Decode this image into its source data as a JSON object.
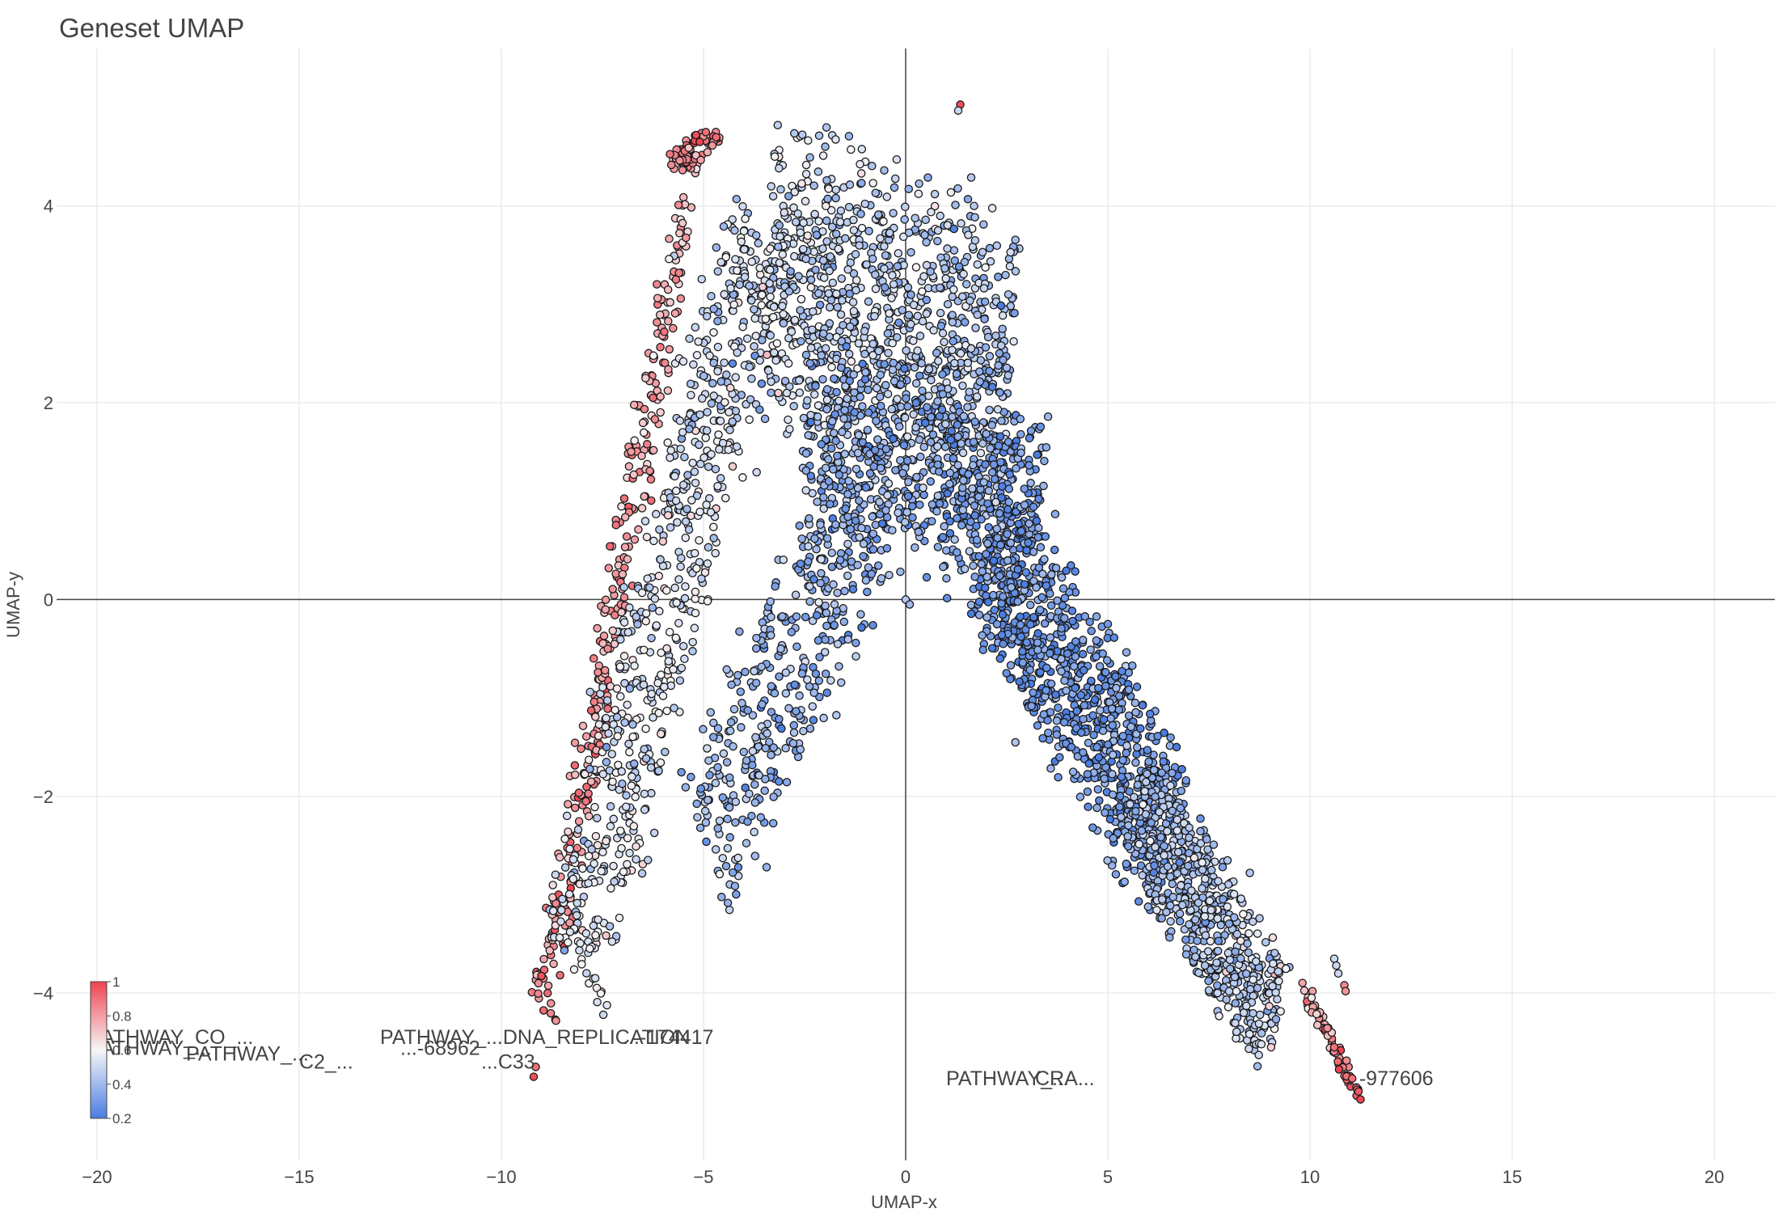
{
  "chart_data": {
    "type": "scatter",
    "title": "Geneset UMAP",
    "xlabel": "UMAP-x",
    "ylabel": "UMAP-y",
    "xlim": [
      -21,
      21.5
    ],
    "ylim": [
      -5.7,
      5.6
    ],
    "x_ticks": [
      -20,
      -15,
      -10,
      -5,
      0,
      5,
      10,
      15,
      20
    ],
    "x_tick_labels": [
      "−20",
      "−15",
      "−10",
      "−5",
      "0",
      "5",
      "10",
      "15",
      "20"
    ],
    "y_ticks": [
      -4,
      -2,
      0,
      2,
      4
    ],
    "y_tick_labels": [
      "−4",
      "−2",
      "0",
      "2",
      "4"
    ],
    "grid": true,
    "zero_lines": true,
    "colorbar": {
      "placement": "bottom-left",
      "range": [
        0.2,
        1
      ],
      "ticks": [
        1,
        0.8,
        0.6,
        0.4,
        0.2
      ],
      "tick_labels": [
        "1",
        "0.8",
        "0.6",
        "0.4",
        "0.2"
      ],
      "colors": {
        "high": "#ef4451",
        "mid": "#f6f6f6",
        "low": "#4a7de2"
      }
    },
    "marker": {
      "edge_color": "#1a1a1a"
    },
    "point_labels": [
      {
        "text": "PATHWAY_CO_...",
        "x": -20.2,
        "y": -4.45
      },
      {
        "text": "PATHWAY_...DNA_REPLICATION",
        "x": -13.0,
        "y": -4.45
      },
      {
        "text": "...-174417",
        "x": -7.0,
        "y": -4.45
      },
      {
        "text": "PATHWAY_...",
        "x": -20.2,
        "y": -4.56
      },
      {
        "text": "...-68962",
        "x": -12.5,
        "y": -4.56
      },
      {
        "text": "PATHWAY_...",
        "x": -17.8,
        "y": -4.62
      },
      {
        "text": "C2_...",
        "x": -15.0,
        "y": -4.7
      },
      {
        "text": "...C33",
        "x": -10.5,
        "y": -4.7
      },
      {
        "text": "PATHWAY_...",
        "x": 1.0,
        "y": -4.87
      },
      {
        "text": "CRA...",
        "x": 3.2,
        "y": -4.87
      },
      {
        "text": "...-977606",
        "x": 10.8,
        "y": -4.87
      }
    ],
    "regions": [
      {
        "name": "left-arm-outer",
        "count": 320,
        "x0": -5.2,
        "y0": 4.6,
        "x1": -9.0,
        "y1": -4.2,
        "width": 0.55,
        "v0": 0.75,
        "v1": 0.85
      },
      {
        "name": "left-arm-inner",
        "count": 650,
        "x0": -3.6,
        "y0": 3.8,
        "x1": -8.2,
        "y1": -3.8,
        "width": 1.5,
        "v0": 0.5,
        "v1": 0.55
      },
      {
        "name": "inner-left-blue",
        "count": 380,
        "x0": -1.0,
        "y0": 0.8,
        "x1": -5.0,
        "y1": -2.5,
        "width": 1.6,
        "v0": 0.35,
        "v1": 0.4
      },
      {
        "name": "top-blob",
        "count": 1000,
        "x0": -3.5,
        "y0": 3.4,
        "x1": 2.6,
        "y1": 2.2,
        "width": 2.6,
        "v0": 0.5,
        "v1": 0.42
      },
      {
        "name": "center-blob",
        "count": 650,
        "x0": -2.5,
        "y0": 1.8,
        "x1": 3.4,
        "y1": 0.8,
        "width": 1.8,
        "v0": 0.38,
        "v1": 0.3
      },
      {
        "name": "right-arm-upper",
        "count": 820,
        "x0": 2.0,
        "y0": 0.6,
        "x1": 6.6,
        "y1": -2.5,
        "width": 1.5,
        "v0": 0.28,
        "v1": 0.3
      },
      {
        "name": "right-arm-lower",
        "count": 650,
        "x0": 5.6,
        "y0": -2.0,
        "x1": 9.2,
        "y1": -4.3,
        "width": 1.1,
        "v0": 0.38,
        "v1": 0.5
      },
      {
        "name": "right-tail",
        "count": 60,
        "x0": 9.8,
        "y0": -3.9,
        "x1": 11.2,
        "y1": -5.05,
        "width": 0.15,
        "v0": 0.7,
        "v1": 0.95
      },
      {
        "name": "left-top-hook",
        "count": 70,
        "x0": -5.8,
        "y0": 4.4,
        "x1": -4.6,
        "y1": 4.75,
        "width": 0.22,
        "v0": 0.82,
        "v1": 0.88
      }
    ],
    "points": [
      {
        "x": 1.35,
        "y": 5.03,
        "v": 0.98
      },
      {
        "x": 1.3,
        "y": 4.97,
        "v": 0.5
      },
      {
        "x": -9.2,
        "y": -4.85,
        "v": 0.98
      },
      {
        "x": -9.15,
        "y": -4.75,
        "v": 0.9
      },
      {
        "x": 11.25,
        "y": -5.08,
        "v": 1.0
      },
      {
        "x": 11.2,
        "y": -5.0,
        "v": 0.95
      },
      {
        "x": 10.6,
        "y": -3.65,
        "v": 0.5
      },
      {
        "x": 10.65,
        "y": -3.72,
        "v": 0.5
      },
      {
        "x": 10.7,
        "y": -3.8,
        "v": 0.5
      },
      {
        "x": 10.85,
        "y": -3.92,
        "v": 0.85
      },
      {
        "x": 10.88,
        "y": -3.98,
        "v": 0.82
      },
      {
        "x": 10.6,
        "y": -4.55,
        "v": 0.9
      },
      {
        "x": 4.1,
        "y": -1.5,
        "v": 0.25
      },
      {
        "x": 6.7,
        "y": -1.5,
        "v": 0.2
      },
      {
        "x": -7.4,
        "y": -1.5,
        "v": 0.3
      },
      {
        "x": -5.7,
        "y": 2.4,
        "v": 0.55
      },
      {
        "x": -5.6,
        "y": 2.45,
        "v": 0.55
      },
      {
        "x": -5.5,
        "y": 2.42,
        "v": 0.55
      },
      {
        "x": 0.0,
        "y": 0.0,
        "v": 0.45
      },
      {
        "x": 0.1,
        "y": -0.05,
        "v": 0.4
      },
      {
        "x": 1.95,
        "y": 2.85,
        "v": 0.35
      }
    ]
  }
}
